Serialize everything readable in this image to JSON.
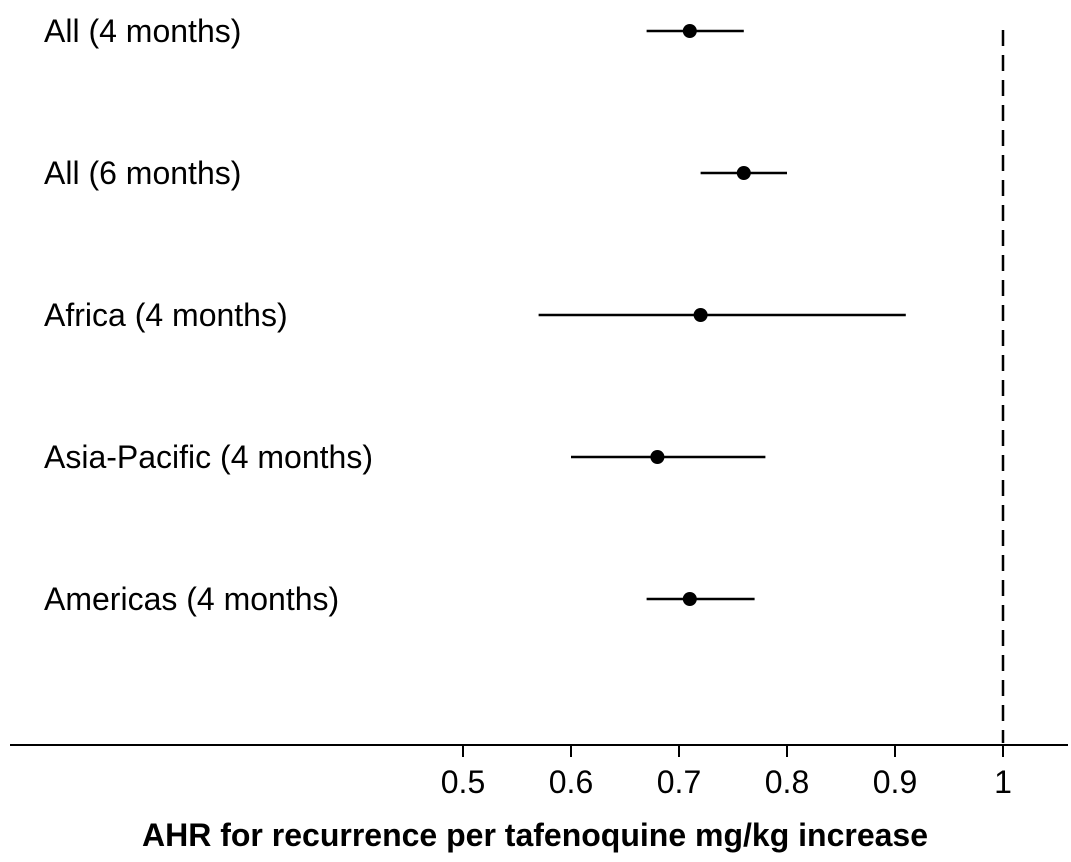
{
  "chart_data": {
    "type": "forest",
    "title": "",
    "xlabel": "AHR for recurrence per tafenoquine mg/kg increase",
    "ylabel": "",
    "xlim": [
      0.1,
      1.065
    ],
    "xticks": [
      0.5,
      0.6,
      0.7,
      0.8,
      0.9,
      1
    ],
    "xtick_labels": [
      "0.5",
      "0.6",
      "0.7",
      "0.8",
      "0.9",
      "1"
    ],
    "reference_line": 1,
    "grid": false,
    "rows": [
      {
        "label": "All (4 months)",
        "estimate": 0.71,
        "lower": 0.67,
        "upper": 0.76
      },
      {
        "label": "All (6 months)",
        "estimate": 0.76,
        "lower": 0.72,
        "upper": 0.8
      },
      {
        "label": "Africa (4 months)",
        "estimate": 0.72,
        "lower": 0.57,
        "upper": 0.91
      },
      {
        "label": "Asia-Pacific (4 months)",
        "estimate": 0.68,
        "lower": 0.6,
        "upper": 0.78
      },
      {
        "label": "Americas (4 months)",
        "estimate": 0.71,
        "lower": 0.67,
        "upper": 0.77
      }
    ]
  },
  "colors": {
    "ink": "#000000",
    "background": "#ffffff"
  }
}
